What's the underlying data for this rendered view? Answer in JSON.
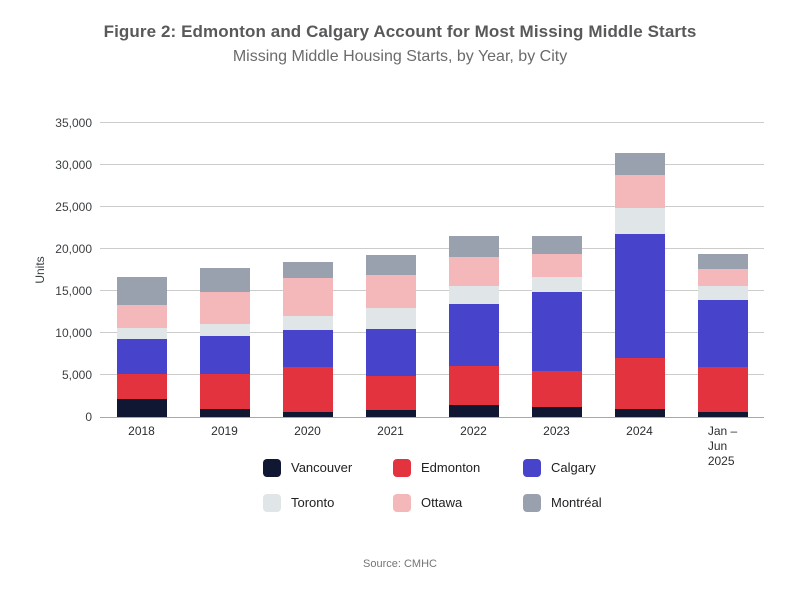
{
  "header": {
    "title": "Figure 2: Edmonton and Calgary Account for Most Missing Middle Starts",
    "subtitle": "Missing Middle Housing Starts, by Year, by City"
  },
  "chart_data": {
    "type": "bar",
    "stacked": true,
    "categories": [
      "2018",
      "2019",
      "2020",
      "2021",
      "2022",
      "2023",
      "2024",
      "Jan – Jun 2025"
    ],
    "categories_multiline": [
      [
        "2018"
      ],
      [
        "2019"
      ],
      [
        "2020"
      ],
      [
        "2021"
      ],
      [
        "2022"
      ],
      [
        "2023"
      ],
      [
        "2024"
      ],
      [
        "Jan –",
        "Jun",
        "2025"
      ]
    ],
    "series": [
      {
        "name": "Vancouver",
        "color": "#101733",
        "values": [
          2100,
          900,
          600,
          800,
          1400,
          1200,
          900,
          600
        ]
      },
      {
        "name": "Edmonton",
        "color": "#e2333e",
        "values": [
          3000,
          4200,
          5300,
          4100,
          4700,
          4300,
          6100,
          5400
        ]
      },
      {
        "name": "Calgary",
        "color": "#4843cb",
        "values": [
          4200,
          4600,
          4500,
          5600,
          7400,
          9400,
          14800,
          7900
        ]
      },
      {
        "name": "Toronto",
        "color": "#e0e5e8",
        "values": [
          1300,
          1400,
          1600,
          2500,
          2100,
          1800,
          3100,
          1700
        ]
      },
      {
        "name": "Ottawa",
        "color": "#f4b8ba",
        "values": [
          2700,
          3800,
          4500,
          3900,
          3500,
          2700,
          3900,
          2000
        ]
      },
      {
        "name": "Montréal",
        "color": "#99a0ae",
        "values": [
          3400,
          2800,
          2000,
          2400,
          2400,
          2200,
          2600,
          1800
        ]
      }
    ],
    "ylabel": "Units",
    "xlabel": "",
    "ylim": [
      0,
      35000
    ],
    "ytick_step": 5000,
    "ytick_labels": [
      "0",
      "5,000",
      "10,000",
      "15,000",
      "20,000",
      "25,000",
      "30,000",
      "35,000"
    ],
    "grid": true,
    "legend_position": "bottom"
  },
  "footer": {
    "source": "Source: CMHC"
  }
}
